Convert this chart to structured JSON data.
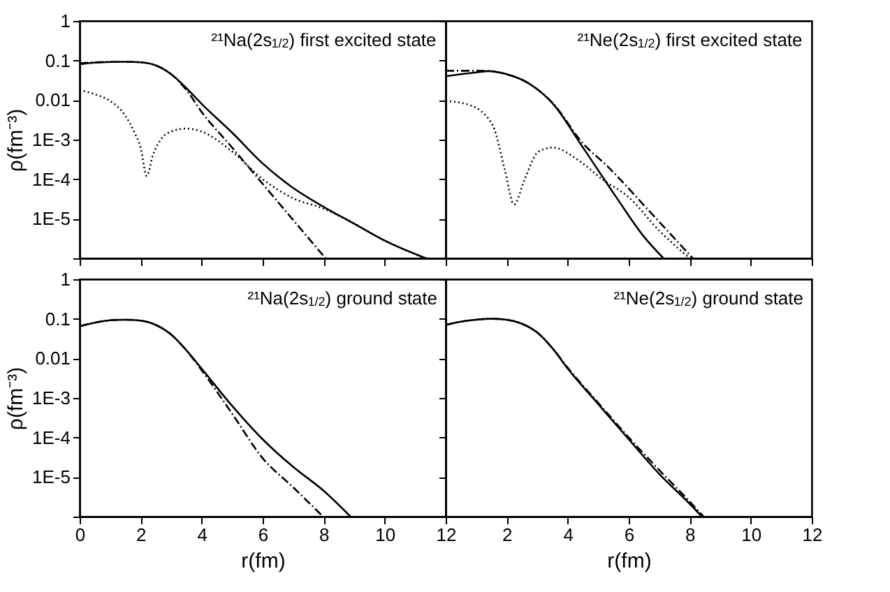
{
  "chart_data": [
    {
      "type": "line",
      "title": "²¹Na(2s$_{1/2}$) first excited state",
      "ylabel": "ρ(fm⁻³)",
      "log": "y",
      "tick_labels": "y",
      "xlim": [
        0,
        12
      ],
      "xticks": [
        0,
        2,
        4,
        6,
        8,
        10,
        12
      ],
      "ylim": [
        1e-06,
        1
      ],
      "yticks": [
        {
          "value": 1e-06,
          "label": null
        },
        {
          "value": 1e-05,
          "label": "1E-5"
        },
        {
          "value": 0.0001,
          "label": "1E-4"
        },
        {
          "value": 0.001,
          "label": "1E-3"
        },
        0.01,
        0.1,
        1
      ],
      "series": [
        {
          "line_style": "solid",
          "color": "#000000",
          "x": [
            0,
            0.5,
            1,
            1.5,
            2,
            2.5,
            3,
            3.5,
            4,
            5,
            6,
            7,
            8,
            9,
            10,
            11.35
          ],
          "values": [
            0.08,
            0.088,
            0.092,
            0.093,
            0.09,
            0.075,
            0.045,
            0.02,
            0.008,
            0.0015,
            0.00025,
            6e-05,
            2e-05,
            7.5e-06,
            2.8e-06,
            1e-06
          ]
        },
        {
          "line_style": "dashed",
          "color": "#000000",
          "x": [
            0,
            0.5,
            1,
            1.5,
            2,
            2.5,
            3,
            3.5,
            4,
            5,
            6,
            7,
            8.06
          ],
          "values": [
            0.085,
            0.09,
            0.092,
            0.093,
            0.09,
            0.075,
            0.045,
            0.018,
            0.005,
            0.00063,
            7.6e-05,
            9.3e-06,
            1e-06
          ]
        },
        {
          "line_style": "dotted",
          "color": "#000000",
          "x": [
            0,
            0.5,
            1,
            1.5,
            1.8,
            2,
            2.2,
            2.4,
            2.7,
            3,
            3.5,
            4,
            5,
            6,
            7,
            8,
            9,
            10,
            11.35
          ],
          "values": [
            0.018,
            0.014,
            0.0095,
            0.004,
            0.0015,
            0.00063,
            0.00012,
            0.0004,
            0.0011,
            0.0016,
            0.0019,
            0.0016,
            0.0005,
            0.0001,
            3.3e-05,
            1.8e-05,
            7.5e-06,
            2.8e-06,
            1e-06
          ]
        }
      ]
    },
    {
      "type": "line",
      "title": "²¹Ne(2s$_{1/2}$) first excited state",
      "log": "y",
      "tick_labels": false,
      "xlim": [
        0,
        12
      ],
      "xticks": [
        0,
        2,
        4,
        6,
        8,
        10,
        12
      ],
      "ylim": [
        1e-06,
        1
      ],
      "yticks": [
        1e-06,
        1e-05,
        0.0001,
        0.001,
        0.01,
        0.1,
        1
      ],
      "series": [
        {
          "line_style": "solid",
          "color": "#000000",
          "x": [
            0,
            0.5,
            1,
            1.4,
            2,
            2.7,
            3.5,
            4.5,
            5.57,
            6.5,
            7.14
          ],
          "values": [
            0.04,
            0.045,
            0.05,
            0.054,
            0.045,
            0.027,
            0.0083,
            0.00063,
            3.7e-05,
            3.5e-06,
            1e-06
          ]
        },
        {
          "line_style": "dashed",
          "color": "#000000",
          "x": [
            0,
            0.5,
            1,
            1.4,
            2,
            2.7,
            3.5,
            4.5,
            5.28,
            6.77,
            8.1
          ],
          "values": [
            0.055,
            0.055,
            0.055,
            0.054,
            0.045,
            0.027,
            0.0085,
            0.0008,
            0.00022,
            1.3e-05,
            1e-06
          ]
        },
        {
          "line_style": "dotted",
          "color": "#000000",
          "x": [
            0,
            0.8,
            1.54,
            1.94,
            2.24,
            2.59,
            3.03,
            3.51,
            4.38,
            5.13,
            6,
            7,
            8
          ],
          "values": [
            0.0095,
            0.0074,
            0.0023,
            0.00017,
            2.3e-05,
            0.0001,
            0.00049,
            0.00063,
            0.00029,
            0.0001,
            3.5e-05,
            5e-06,
            1e-06
          ]
        }
      ]
    },
    {
      "type": "line",
      "title": "²¹Na(2s$_{1/2}$) ground state",
      "xlabel": "r(fm)",
      "ylabel": "ρ(fm⁻³)",
      "log": "y",
      "xlim": [
        0,
        12
      ],
      "xticks": [
        0,
        2,
        4,
        6,
        8,
        10,
        12
      ],
      "ylim": [
        1e-06,
        1
      ],
      "yticks": [
        {
          "value": 1e-06,
          "label": null
        },
        {
          "value": 1e-05,
          "label": "1E-5"
        },
        {
          "value": 0.0001,
          "label": "1E-4"
        },
        {
          "value": 0.001,
          "label": "1E-3"
        },
        0.01,
        0.1,
        1
      ],
      "series": [
        {
          "line_style": "solid",
          "color": "#000000",
          "x": [
            0,
            0.5,
            1,
            1.5,
            2,
            2.5,
            3,
            3.5,
            4,
            5,
            6,
            7,
            8,
            8.88
          ],
          "values": [
            0.065,
            0.08,
            0.092,
            0.095,
            0.09,
            0.07,
            0.04,
            0.016,
            0.0055,
            0.00063,
            9e-05,
            1.8e-05,
            4.5e-06,
            1e-06
          ]
        },
        {
          "line_style": "dashed",
          "color": "#000000",
          "x": [
            0,
            0.5,
            1,
            1.5,
            2,
            2.5,
            3,
            3.5,
            4,
            5,
            6,
            7,
            7.98
          ],
          "values": [
            0.065,
            0.08,
            0.092,
            0.095,
            0.09,
            0.07,
            0.04,
            0.016,
            0.005,
            0.0004,
            3e-05,
            5.5e-06,
            1e-06
          ]
        }
      ]
    },
    {
      "type": "line",
      "title": "²¹Ne(2s$_{1/2}$) ground state",
      "xlabel": "r(fm)",
      "log": "y",
      "tick_labels": "x",
      "xlim": [
        0,
        12
      ],
      "xticks": [
        {
          "value": 0,
          "label": null
        },
        2,
        4,
        6,
        8,
        10,
        12
      ],
      "ylim": [
        1e-06,
        1
      ],
      "yticks": [
        1e-06,
        1e-05,
        0.0001,
        0.001,
        0.01,
        0.1,
        1
      ],
      "series": [
        {
          "line_style": "solid",
          "color": "#000000",
          "x": [
            0,
            0.5,
            1,
            1.5,
            2,
            2.5,
            3,
            3.5,
            4,
            5,
            6,
            7,
            8,
            8.4
          ],
          "values": [
            0.07,
            0.085,
            0.095,
            0.1,
            0.095,
            0.075,
            0.045,
            0.018,
            0.0055,
            0.0007,
            9e-05,
            1.2e-05,
            2.1e-06,
            1e-06
          ]
        },
        {
          "line_style": "dashed",
          "color": "#000000",
          "x": [
            0,
            0.5,
            1,
            1.5,
            2,
            2.5,
            3,
            3.5,
            4,
            5,
            6,
            7,
            8,
            8.45
          ],
          "values": [
            0.07,
            0.085,
            0.095,
            0.1,
            0.095,
            0.075,
            0.045,
            0.018,
            0.0058,
            0.00075,
            0.0001,
            1.5e-05,
            2.4e-06,
            1e-06
          ]
        }
      ]
    }
  ]
}
